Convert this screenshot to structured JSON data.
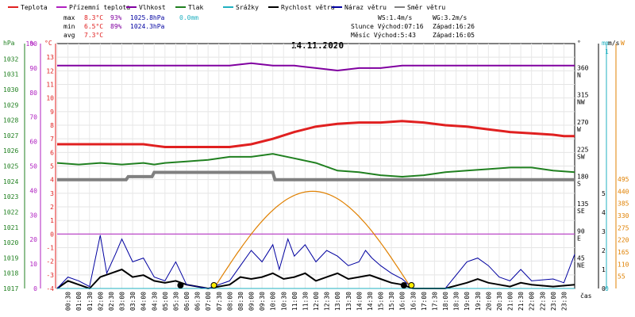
{
  "legend": [
    {
      "label": "Teplota",
      "color": "#e02020"
    },
    {
      "label": "Přízemní teplota",
      "color": "#b020c0"
    },
    {
      "label": "Vlhkost",
      "color": "#8000a0"
    },
    {
      "label": "Tlak",
      "color": "#208020"
    },
    {
      "label": "Srážky",
      "color": "#20b0c0"
    },
    {
      "label": "Rychlost větru",
      "color": "#000000"
    },
    {
      "label": "Náraz větru",
      "color": "#0000a0"
    },
    {
      "label": "Směr větru",
      "color": "#808080"
    }
  ],
  "stats": {
    "max": {
      "label": "max",
      "temp": "8.3°C",
      "hum": "93%",
      "press": "1025.8hPa",
      "rain": "0.0mm"
    },
    "min": {
      "label": "min",
      "temp": "6.5°C",
      "hum": "89%",
      "press": "1024.3hPa"
    },
    "avg": {
      "label": "avg",
      "temp": "7.3°C"
    }
  },
  "info": {
    "ws": "WS:1.4m/s",
    "wg": "WG:3.2m/s",
    "slunce": "Slunce Východ:07:16",
    "slunce_zapad": "Západ:16:26",
    "mesic": "Měsíc  Východ:5:43",
    "mesic_zapad": "Západ:16:05"
  },
  "axis_units": {
    "hpa": "hPa",
    "pct": "%",
    "degc": "°C",
    "deg": "°",
    "mm": "mm",
    "ms": "m/s",
    "w": "W",
    "cas": "čas"
  },
  "chart_data": {
    "type": "line",
    "title": "14.11.2020",
    "x_ticks": [
      "00:30",
      "01:00",
      "01:30",
      "02:00",
      "02:30",
      "03:00",
      "03:30",
      "04:00",
      "04:30",
      "05:00",
      "05:30",
      "06:00",
      "06:30",
      "07:00",
      "07:30",
      "08:00",
      "08:30",
      "09:00",
      "09:30",
      "10:00",
      "10:30",
      "11:00",
      "11:30",
      "12:00",
      "12:30",
      "13:00",
      "13:30",
      "14:00",
      "14:30",
      "15:00",
      "15:30",
      "16:00",
      "16:30",
      "17:00",
      "17:30",
      "18:00",
      "18:30",
      "19:00",
      "19:30",
      "20:00",
      "20:30",
      "21:00",
      "21:30",
      "22:00",
      "22:30",
      "23:00",
      "23:30"
    ],
    "axes": {
      "pressure_hpa": {
        "range": [
          1017,
          1033
        ],
        "ticks": [
          1017,
          1018,
          1019,
          1020,
          1021,
          1022,
          1023,
          1024,
          1025,
          1026,
          1027,
          1028,
          1029,
          1030,
          1031,
          1032
        ],
        "color": "#208020"
      },
      "humidity_pct": {
        "range": [
          0,
          100
        ],
        "ticks": [
          0,
          10,
          20,
          30,
          40,
          50,
          60,
          70,
          80,
          90,
          100
        ],
        "color": "#b020c0"
      },
      "temperature_c": {
        "range": [
          -4,
          14
        ],
        "ticks": [
          -4,
          -3,
          -2,
          -1,
          0,
          1,
          2,
          3,
          4,
          5,
          6,
          7,
          8,
          9,
          10,
          11,
          12,
          13
        ],
        "color": "#e02020"
      },
      "wind_dir_deg": {
        "ticks": [
          {
            "v": 0,
            "l": ""
          },
          {
            "v": 45,
            "l": "45"
          },
          {
            "v": 90,
            "l": "90"
          },
          {
            "v": 135,
            "l": "135"
          },
          {
            "v": 180,
            "l": "180"
          },
          {
            "v": 225,
            "l": "225"
          },
          {
            "v": 270,
            "l": "270"
          },
          {
            "v": 315,
            "l": "315"
          },
          {
            "v": 360,
            "l": "360"
          }
        ],
        "dir_labels": [
          {
            "v": 45,
            "l": "NE"
          },
          {
            "v": 90,
            "l": "E"
          },
          {
            "v": 135,
            "l": "SE"
          },
          {
            "v": 180,
            "l": "S"
          },
          {
            "v": 225,
            "l": "SW"
          },
          {
            "v": 270,
            "l": "W"
          },
          {
            "v": 315,
            "l": "NW"
          },
          {
            "v": 360,
            "l": "N"
          }
        ]
      },
      "rain_mm": {
        "ticks": [
          0,
          1
        ],
        "color": "#20b0c0"
      },
      "wind_ms": {
        "ticks": [
          0,
          1,
          2,
          3,
          4,
          5
        ],
        "color": "#000000"
      },
      "solar_w": {
        "range": [
          0,
          495
        ],
        "ticks": [
          55,
          110,
          165,
          220,
          275,
          330,
          385,
          440,
          495
        ],
        "color": "#e08000"
      }
    },
    "series": [
      {
        "name": "Teplota",
        "color": "#e02020",
        "unit": "°C",
        "points": [
          [
            0,
            6.6
          ],
          [
            2,
            6.6
          ],
          [
            4,
            6.6
          ],
          [
            4.5,
            6.5
          ],
          [
            5,
            6.4
          ],
          [
            6,
            6.4
          ],
          [
            7,
            6.4
          ],
          [
            8,
            6.4
          ],
          [
            9,
            6.6
          ],
          [
            10,
            7.0
          ],
          [
            11,
            7.5
          ],
          [
            12,
            7.9
          ],
          [
            13,
            8.1
          ],
          [
            14,
            8.2
          ],
          [
            15,
            8.2
          ],
          [
            16,
            8.3
          ],
          [
            17,
            8.2
          ],
          [
            18,
            8.0
          ],
          [
            19,
            7.9
          ],
          [
            20,
            7.7
          ],
          [
            21,
            7.5
          ],
          [
            22,
            7.4
          ],
          [
            23,
            7.3
          ],
          [
            23.5,
            7.2
          ],
          [
            24,
            7.2
          ]
        ]
      },
      {
        "name": "Vlhkost",
        "color": "#8000a0",
        "unit": "%",
        "points": [
          [
            0,
            91
          ],
          [
            5,
            91
          ],
          [
            6,
            91
          ],
          [
            7,
            91
          ],
          [
            8,
            91
          ],
          [
            9,
            92
          ],
          [
            10,
            91
          ],
          [
            11,
            91
          ],
          [
            12,
            90
          ],
          [
            13,
            89
          ],
          [
            14,
            90
          ],
          [
            15,
            90
          ],
          [
            16,
            91
          ],
          [
            17,
            91
          ],
          [
            18,
            91
          ],
          [
            19,
            91
          ],
          [
            20,
            91
          ],
          [
            21,
            91
          ],
          [
            22,
            91
          ],
          [
            23,
            91
          ],
          [
            24,
            91
          ]
        ]
      },
      {
        "name": "Tlak",
        "color": "#208020",
        "unit": "hPa",
        "points": [
          [
            0,
            1025.2
          ],
          [
            1,
            1025.1
          ],
          [
            2,
            1025.2
          ],
          [
            3,
            1025.1
          ],
          [
            4,
            1025.2
          ],
          [
            4.5,
            1025.1
          ],
          [
            5,
            1025.2
          ],
          [
            6,
            1025.3
          ],
          [
            7,
            1025.4
          ],
          [
            8,
            1025.6
          ],
          [
            9,
            1025.6
          ],
          [
            10,
            1025.8
          ],
          [
            11,
            1025.5
          ],
          [
            12,
            1025.2
          ],
          [
            13,
            1024.7
          ],
          [
            14,
            1024.6
          ],
          [
            15,
            1024.4
          ],
          [
            16,
            1024.3
          ],
          [
            17,
            1024.4
          ],
          [
            18,
            1024.6
          ],
          [
            19,
            1024.7
          ],
          [
            20,
            1024.8
          ],
          [
            21,
            1024.9
          ],
          [
            22,
            1024.9
          ],
          [
            23,
            1024.7
          ],
          [
            24,
            1024.6
          ]
        ]
      },
      {
        "name": "Přízemní teplota",
        "color": "#b020c0",
        "unit": "°C",
        "points": [
          [
            0,
            0
          ],
          [
            24,
            0
          ]
        ]
      },
      {
        "name": "Směr větru",
        "color": "#808080",
        "unit": "°",
        "points": [
          [
            0,
            180
          ],
          [
            3.2,
            180
          ],
          [
            3.3,
            185
          ],
          [
            4.4,
            185
          ],
          [
            4.5,
            192
          ],
          [
            10,
            192
          ],
          [
            10.1,
            180
          ],
          [
            24,
            180
          ]
        ]
      },
      {
        "name": "Rychlost větru",
        "color": "#000000",
        "unit": "m/s",
        "points": [
          [
            0,
            0
          ],
          [
            0.5,
            0.4
          ],
          [
            1,
            0.2
          ],
          [
            1.5,
            0
          ],
          [
            2,
            0.6
          ],
          [
            2.5,
            0.8
          ],
          [
            3,
            1.0
          ],
          [
            3.5,
            0.6
          ],
          [
            4,
            0.7
          ],
          [
            4.5,
            0.4
          ],
          [
            5,
            0.3
          ],
          [
            5.5,
            0.4
          ],
          [
            6,
            0.2
          ],
          [
            7,
            0
          ],
          [
            8,
            0.2
          ],
          [
            8.5,
            0.6
          ],
          [
            9,
            0.5
          ],
          [
            9.5,
            0.6
          ],
          [
            10,
            0.8
          ],
          [
            10.5,
            0.5
          ],
          [
            11,
            0.6
          ],
          [
            11.5,
            0.8
          ],
          [
            12,
            0.4
          ],
          [
            12.5,
            0.6
          ],
          [
            13,
            0.8
          ],
          [
            13.5,
            0.5
          ],
          [
            14,
            0.6
          ],
          [
            14.5,
            0.7
          ],
          [
            15,
            0.5
          ],
          [
            15.5,
            0.3
          ],
          [
            16,
            0.2
          ],
          [
            16.5,
            0
          ],
          [
            18,
            0
          ],
          [
            19,
            0.3
          ],
          [
            19.5,
            0.5
          ],
          [
            20,
            0.3
          ],
          [
            20.5,
            0.2
          ],
          [
            21,
            0.1
          ],
          [
            21.5,
            0.3
          ],
          [
            22,
            0.2
          ],
          [
            23,
            0.1
          ],
          [
            24,
            0.2
          ]
        ]
      },
      {
        "name": "Náraz větru",
        "color": "#0000a0",
        "unit": "m/s",
        "points": [
          [
            0,
            0
          ],
          [
            0.5,
            0.6
          ],
          [
            1,
            0.4
          ],
          [
            1.5,
            0.1
          ],
          [
            2,
            2.8
          ],
          [
            2.3,
            0.8
          ],
          [
            2.7,
            1.8
          ],
          [
            3,
            2.6
          ],
          [
            3.5,
            1.4
          ],
          [
            4,
            1.6
          ],
          [
            4.5,
            0.6
          ],
          [
            5,
            0.4
          ],
          [
            5.5,
            1.4
          ],
          [
            6,
            0.2
          ],
          [
            7,
            0
          ],
          [
            8,
            0.4
          ],
          [
            8.5,
            1.2
          ],
          [
            9,
            2.0
          ],
          [
            9.5,
            1.4
          ],
          [
            10,
            2.3
          ],
          [
            10.3,
            1.0
          ],
          [
            10.7,
            2.6
          ],
          [
            11,
            1.7
          ],
          [
            11.5,
            2.3
          ],
          [
            12,
            1.4
          ],
          [
            12.5,
            2.0
          ],
          [
            13,
            1.7
          ],
          [
            13.5,
            1.2
          ],
          [
            14,
            1.4
          ],
          [
            14.3,
            2.0
          ],
          [
            14.6,
            1.6
          ],
          [
            15,
            1.2
          ],
          [
            15.5,
            0.8
          ],
          [
            16,
            0.5
          ],
          [
            16.5,
            0
          ],
          [
            18,
            0
          ],
          [
            19,
            1.4
          ],
          [
            19.5,
            1.6
          ],
          [
            20,
            1.2
          ],
          [
            20.5,
            0.6
          ],
          [
            21,
            0.4
          ],
          [
            21.5,
            1.0
          ],
          [
            22,
            0.4
          ],
          [
            23,
            0.5
          ],
          [
            23.5,
            0.3
          ],
          [
            24,
            1.8
          ]
        ]
      },
      {
        "name": "Srážky",
        "color": "#20b0c0",
        "unit": "mm",
        "points": [
          [
            0,
            0
          ],
          [
            24,
            0
          ]
        ]
      }
    ],
    "solar": {
      "color": "#e08000",
      "unit": "W",
      "sunrise": 7.27,
      "sunset": 16.43,
      "peak": 440
    },
    "markers": [
      {
        "type": "moonrise",
        "t": 5.72
      },
      {
        "type": "sunrise",
        "t": 7.27
      },
      {
        "type": "moonset",
        "t": 16.08
      },
      {
        "type": "sunset",
        "t": 16.43
      }
    ]
  }
}
